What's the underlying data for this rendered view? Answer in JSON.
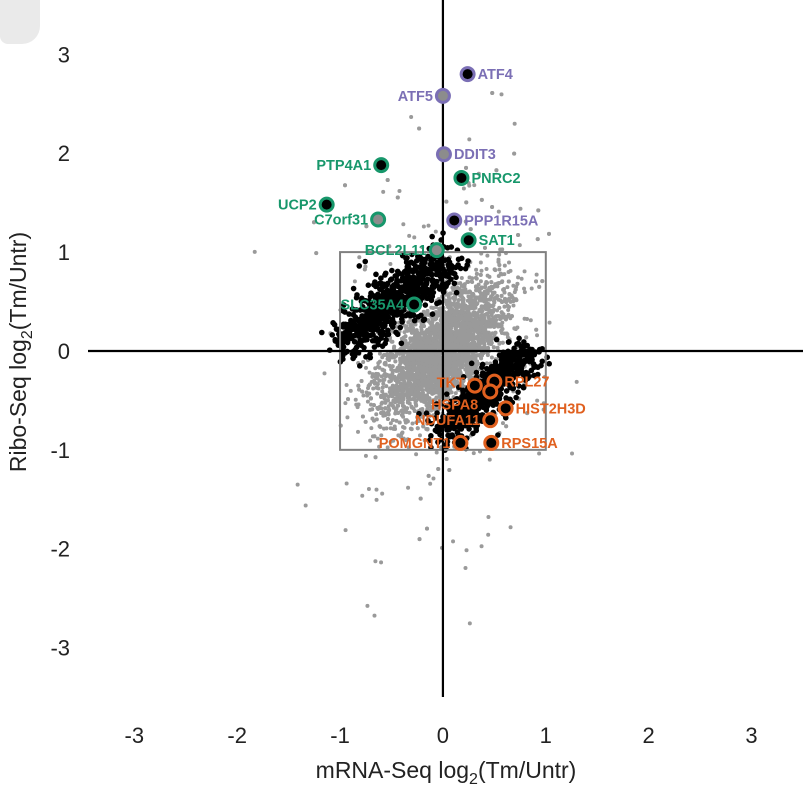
{
  "chart_data": {
    "type": "scatter",
    "title": "",
    "xlabel": {
      "prefix": "mRNA-Seq log",
      "sub": "2",
      "suffix": "(Tm/Untr)"
    },
    "ylabel": {
      "prefix": "Ribo-Seq log",
      "sub": "2",
      "suffix": "(Tm/Untr)"
    },
    "xlim": [
      -3.45,
      3.5
    ],
    "ylim": [
      -3.5,
      3.55
    ],
    "xticks": [
      -3,
      -2,
      -1,
      0,
      1,
      2,
      3
    ],
    "yticks": [
      -3,
      -2,
      -1,
      0,
      1,
      2,
      3
    ],
    "xtick_labels": [
      "-3",
      "-2",
      "-1",
      "0",
      "1",
      "2",
      "3"
    ],
    "ytick_labels": [
      "-3",
      "-2",
      "-1",
      "0",
      "1",
      "2",
      "3"
    ],
    "grid": false,
    "threshold_box": {
      "x": [
        -1,
        1
      ],
      "y": [
        -1,
        1
      ],
      "color": "#808080"
    },
    "colors": {
      "background_points": "#9a9a9a",
      "significant_points": "#000000",
      "purple": "#7b6fb5",
      "green": "#17976b",
      "orange": "#e0601f"
    },
    "labeled_genes": [
      {
        "name": "ATF4",
        "x": 0.24,
        "y": 2.8,
        "group": "purple",
        "fill": "black",
        "side": "right"
      },
      {
        "name": "ATF5",
        "x": 0.0,
        "y": 2.58,
        "group": "purple",
        "fill": "gray",
        "side": "left"
      },
      {
        "name": "DDIT3",
        "x": 0.01,
        "y": 1.99,
        "group": "purple",
        "fill": "gray",
        "side": "right"
      },
      {
        "name": "PPP1R15A",
        "x": 0.11,
        "y": 1.32,
        "group": "purple",
        "fill": "black",
        "side": "right"
      },
      {
        "name": "PTP4A1",
        "x": -0.6,
        "y": 1.88,
        "group": "green",
        "fill": "black",
        "side": "left"
      },
      {
        "name": "PNRC2",
        "x": 0.18,
        "y": 1.75,
        "group": "green",
        "fill": "black",
        "side": "right"
      },
      {
        "name": "UCP2",
        "x": -1.13,
        "y": 1.48,
        "group": "green",
        "fill": "black",
        "side": "left"
      },
      {
        "name": "C7orf31",
        "x": -0.63,
        "y": 1.33,
        "group": "green",
        "fill": "gray",
        "side": "left"
      },
      {
        "name": "SAT1",
        "x": 0.25,
        "y": 1.12,
        "group": "green",
        "fill": "black",
        "side": "right"
      },
      {
        "name": "BCL2L11",
        "x": -0.06,
        "y": 1.02,
        "group": "green",
        "fill": "gray",
        "side": "left"
      },
      {
        "name": "SLC35A4",
        "x": -0.28,
        "y": 0.47,
        "group": "green",
        "fill": "black",
        "side": "left"
      },
      {
        "name": "TKT",
        "x": 0.31,
        "y": -0.35,
        "group": "orange",
        "fill": "black",
        "side": "left"
      },
      {
        "name": "RPL27",
        "x": 0.5,
        "y": -0.31,
        "group": "orange",
        "fill": "black",
        "side": "right"
      },
      {
        "name": "HSPA8",
        "x": 0.46,
        "y": -0.41,
        "group": "orange",
        "fill": "black",
        "side": "left"
      },
      {
        "name": "HIST2H3D",
        "x": 0.61,
        "y": -0.58,
        "group": "orange",
        "fill": "black",
        "side": "right"
      },
      {
        "name": "NDUFA11",
        "x": 0.46,
        "y": -0.7,
        "group": "orange",
        "fill": "black",
        "side": "left"
      },
      {
        "name": "POMGNT1",
        "x": 0.17,
        "y": -0.93,
        "group": "orange",
        "fill": "black",
        "side": "left"
      },
      {
        "name": "RPS15A",
        "x": 0.47,
        "y": -0.93,
        "group": "orange",
        "fill": "black",
        "side": "right"
      }
    ]
  }
}
